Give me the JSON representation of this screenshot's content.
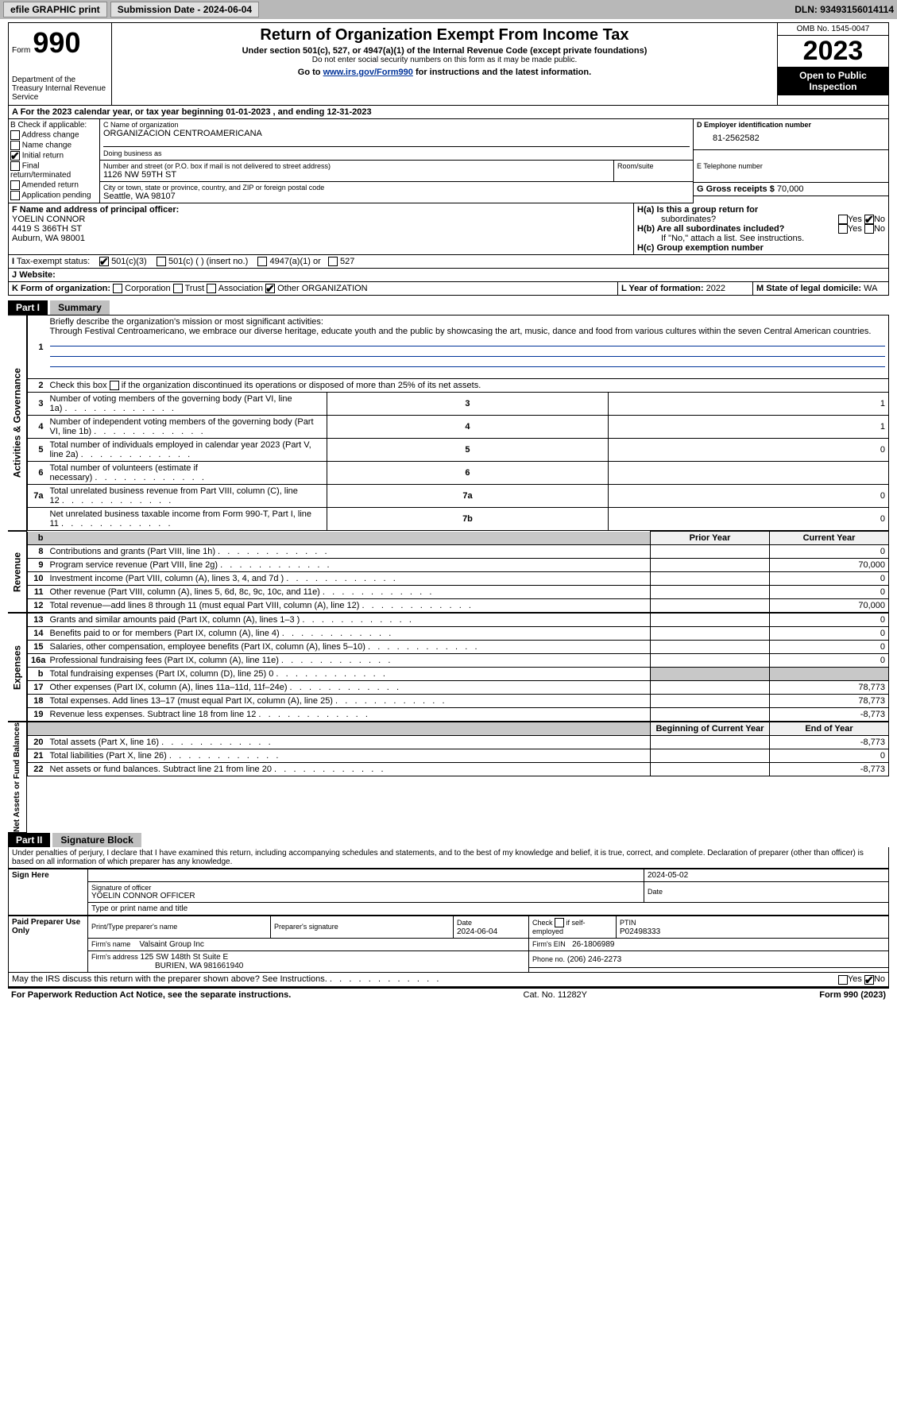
{
  "toolbar": {
    "efile_label": "efile GRAPHIC print",
    "submission_label": "Submission Date - 2024-06-04",
    "dln_label": "DLN: 93493156014114"
  },
  "header": {
    "form_word": "Form",
    "form_number": "990",
    "dept": "Department of the Treasury\nInternal Revenue Service",
    "title": "Return of Organization Exempt From Income Tax",
    "subtitle": "Under section 501(c), 527, or 4947(a)(1) of the Internal Revenue Code (except private foundations)",
    "no_ssn": "Do not enter social security numbers on this form as it may be made public.",
    "goto_prefix": "Go to ",
    "goto_link": "www.irs.gov/Form990",
    "goto_suffix": " for instructions and the latest information.",
    "omb": "OMB No. 1545-0047",
    "year": "2023",
    "open": "Open to Public Inspection"
  },
  "lineA": "A For the 2023 calendar year, or tax year beginning 01-01-2023   , and ending 12-31-2023",
  "boxB": {
    "label": "B Check if applicable:",
    "opts": [
      {
        "label": "Address change",
        "checked": false
      },
      {
        "label": "Name change",
        "checked": false
      },
      {
        "label": "Initial return",
        "checked": true
      },
      {
        "label": "Final return/terminated",
        "checked": false
      },
      {
        "label": "Amended return",
        "checked": false
      },
      {
        "label": "Application pending",
        "checked": false
      }
    ]
  },
  "boxC": {
    "name_label": "C Name of organization",
    "name": "ORGANIZACION CENTROAMERICANA",
    "dba_label": "Doing business as",
    "dba": "",
    "addr_label": "Number and street (or P.O. box if mail is not delivered to street address)",
    "addr": "1126 NW 59TH ST",
    "room_label": "Room/suite",
    "city_label": "City or town, state or province, country, and ZIP or foreign postal code",
    "city": "Seattle, WA  98107"
  },
  "boxD": {
    "label": "D Employer identification number",
    "ein": "81-2562582"
  },
  "boxE": {
    "label": "E Telephone number",
    "phone": ""
  },
  "boxG": {
    "label": "G Gross receipts $",
    "amount": "70,000"
  },
  "boxF": {
    "label": "F  Name and address of principal officer:",
    "name": "YOELIN CONNOR",
    "addr": "4419 S 366TH ST",
    "city": "Auburn, WA  98001"
  },
  "boxH": {
    "a_label": "H(a)  Is this a group return for",
    "a_sub": "subordinates?",
    "a_yes": "Yes",
    "a_no": "No",
    "a_checked": "No",
    "b_label": "H(b)  Are all subordinates included?",
    "b_note": "If \"No,\" attach a list. See instructions.",
    "c_label": "H(c)  Group exemption number"
  },
  "boxI": {
    "label": "Tax-exempt status:",
    "opts": [
      "501(c)(3)",
      "501(c) (  ) (insert no.)",
      "4947(a)(1) or",
      "527"
    ],
    "checked": 0
  },
  "boxJ": {
    "label": "Website:",
    "value": ""
  },
  "boxK": {
    "label": "K Form of organization:",
    "opts": [
      "Corporation",
      "Trust",
      "Association",
      "Other"
    ],
    "checked": 3,
    "other_text": "ORGANIZATION"
  },
  "boxL": {
    "label": "L Year of formation:",
    "value": "2022"
  },
  "boxM": {
    "label": "M State of legal domicile:",
    "value": "WA"
  },
  "part1": {
    "hdr": "Part I",
    "title": "Summary",
    "q1_label": "Briefly describe the organization's mission or most significant activities:",
    "q1_text": "Through Festival Centroamericano, we embrace our diverse heritage, educate youth and the public by showcasing the art, music, dance and food from various cultures within the seven Central American countries.",
    "q2": "Check this box       if the organization discontinued its operations or disposed of more than 25% of its net assets."
  },
  "section_labels": {
    "ag": "Activities & Governance",
    "rev": "Revenue",
    "exp": "Expenses",
    "net": "Net Assets or Fund Balances"
  },
  "ag_rows": [
    {
      "n": "3",
      "desc": "Number of voting members of the governing body (Part VI, line 1a)",
      "box": "3",
      "val": "1"
    },
    {
      "n": "4",
      "desc": "Number of independent voting members of the governing body (Part VI, line 1b)",
      "box": "4",
      "val": "1"
    },
    {
      "n": "5",
      "desc": "Total number of individuals employed in calendar year 2023 (Part V, line 2a)",
      "box": "5",
      "val": "0"
    },
    {
      "n": "6",
      "desc": "Total number of volunteers (estimate if necessary)",
      "box": "6",
      "val": ""
    },
    {
      "n": "7a",
      "desc": "Total unrelated business revenue from Part VIII, column (C), line 12",
      "box": "7a",
      "val": "0"
    },
    {
      "n": "",
      "desc": "Net unrelated business taxable income from Form 990-T, Part I, line 11",
      "box": "7b",
      "val": "0"
    }
  ],
  "col_hdr": {
    "prior": "Prior Year",
    "current": "Current Year"
  },
  "rev_rows": [
    {
      "n": "8",
      "desc": "Contributions and grants (Part VIII, line 1h)",
      "prior": "",
      "cur": "0"
    },
    {
      "n": "9",
      "desc": "Program service revenue (Part VIII, line 2g)",
      "prior": "",
      "cur": "70,000"
    },
    {
      "n": "10",
      "desc": "Investment income (Part VIII, column (A), lines 3, 4, and 7d )",
      "prior": "",
      "cur": "0"
    },
    {
      "n": "11",
      "desc": "Other revenue (Part VIII, column (A), lines 5, 6d, 8c, 9c, 10c, and 11e)",
      "prior": "",
      "cur": "0"
    },
    {
      "n": "12",
      "desc": "Total revenue—add lines 8 through 11 (must equal Part VIII, column (A), line 12)",
      "prior": "",
      "cur": "70,000"
    }
  ],
  "exp_rows": [
    {
      "n": "13",
      "desc": "Grants and similar amounts paid (Part IX, column (A), lines 1–3 )",
      "prior": "",
      "cur": "0"
    },
    {
      "n": "14",
      "desc": "Benefits paid to or for members (Part IX, column (A), line 4)",
      "prior": "",
      "cur": "0"
    },
    {
      "n": "15",
      "desc": "Salaries, other compensation, employee benefits (Part IX, column (A), lines 5–10)",
      "prior": "",
      "cur": "0"
    },
    {
      "n": "16a",
      "desc": "Professional fundraising fees (Part IX, column (A), line 11e)",
      "prior": "",
      "cur": "0"
    },
    {
      "n": "b",
      "desc": "Total fundraising expenses (Part IX, column (D), line 25) 0",
      "prior": "shade",
      "cur": "shade"
    },
    {
      "n": "17",
      "desc": "Other expenses (Part IX, column (A), lines 11a–11d, 11f–24e)",
      "prior": "",
      "cur": "78,773"
    },
    {
      "n": "18",
      "desc": "Total expenses. Add lines 13–17 (must equal Part IX, column (A), line 25)",
      "prior": "",
      "cur": "78,773"
    },
    {
      "n": "19",
      "desc": "Revenue less expenses. Subtract line 18 from line 12",
      "prior": "",
      "cur": "-8,773"
    }
  ],
  "net_hdr": {
    "beg": "Beginning of Current Year",
    "end": "End of Year"
  },
  "net_rows": [
    {
      "n": "20",
      "desc": "Total assets (Part X, line 16)",
      "beg": "",
      "end": "-8,773"
    },
    {
      "n": "21",
      "desc": "Total liabilities (Part X, line 26)",
      "beg": "",
      "end": "0"
    },
    {
      "n": "22",
      "desc": "Net assets or fund balances. Subtract line 21 from line 20",
      "beg": "",
      "end": "-8,773"
    }
  ],
  "part2": {
    "hdr": "Part II",
    "title": "Signature Block",
    "perjury": "Under penalties of perjury, I declare that I have examined this return, including accompanying schedules and statements, and to the best of my knowledge and belief, it is true, correct, and complete. Declaration of preparer (other than officer) is based on all information of which preparer has any knowledge."
  },
  "sign": {
    "here": "Sign Here",
    "sig_label": "Signature of officer",
    "officer": "YOELIN CONNOR  OFFICER",
    "type_label": "Type or print name and title",
    "date": "2024-05-02",
    "date_label": "Date"
  },
  "paid": {
    "label": "Paid Preparer Use Only",
    "name_label": "Print/Type preparer's name",
    "name": "",
    "sig_label": "Preparer's signature",
    "date_label": "Date",
    "date": "2024-06-04",
    "check_label": "Check        if self-employed",
    "ptin_label": "PTIN",
    "ptin": "P02498333",
    "firm_label": "Firm's name",
    "firm": "Valsaint Group Inc",
    "ein_label": "Firm's EIN",
    "ein": "26-1806989",
    "addr_label": "Firm's address",
    "addr": "125 SW 148th St Suite E",
    "addr2": "BURIEN, WA  981661940",
    "phone_label": "Phone no.",
    "phone": "(206) 246-2273"
  },
  "discuss": {
    "q": "May the IRS discuss this return with the preparer shown above? See Instructions.",
    "yes": "Yes",
    "no": "No",
    "checked": "No"
  },
  "footer": {
    "left": "For Paperwork Reduction Act Notice, see the separate instructions.",
    "mid": "Cat. No. 11282Y",
    "right": "Form 990 (2023)"
  },
  "styling": {
    "bg": "#ffffff",
    "toolbar_bg": "#b8b8b8",
    "rule_color": "#000000",
    "link_color": "#003399",
    "shade": "#c8c8c8",
    "checked_color": "#000000",
    "font_family": "Arial, Helvetica, sans-serif",
    "base_font_pt": 11,
    "title_font_pt": 20,
    "year_font_pt": 34
  }
}
